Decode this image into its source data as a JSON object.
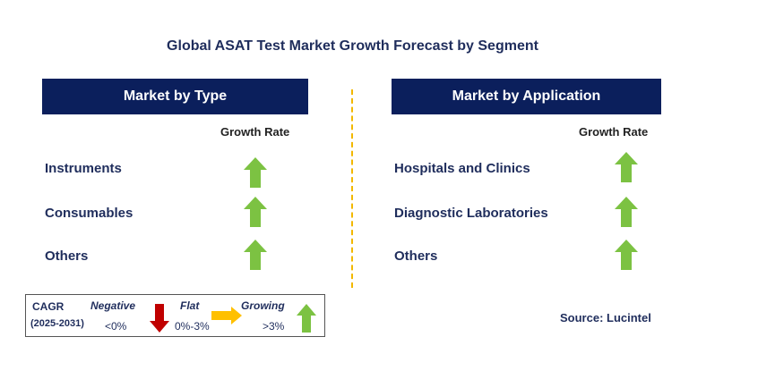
{
  "title": "Global ASAT Test Market Growth Forecast by Segment",
  "left_panel": {
    "header": "Market by Type",
    "growth_rate_label": "Growth Rate",
    "rows": [
      {
        "label": "Instruments",
        "trend": "growing"
      },
      {
        "label": "Consumables",
        "trend": "growing"
      },
      {
        "label": "Others",
        "trend": "growing"
      }
    ]
  },
  "right_panel": {
    "header": "Market by Application",
    "growth_rate_label": "Growth Rate",
    "rows": [
      {
        "label": "Hospitals and Clinics",
        "trend": "growing"
      },
      {
        "label": "Diagnostic Laboratories",
        "trend": "growing"
      },
      {
        "label": "Others",
        "trend": "growing"
      }
    ]
  },
  "legend": {
    "cagr_label": "CAGR",
    "period": "(2025-2031)",
    "negative": {
      "label": "Negative",
      "range": "<0%"
    },
    "flat": {
      "label": "Flat",
      "range": "0%-3%"
    },
    "growing": {
      "label": "Growing",
      "range": ">3%"
    }
  },
  "source": "Source: Lucintel",
  "colors": {
    "header_bg": "#0b1f5c",
    "growing_arrow": "#7cc242",
    "negative_arrow": "#c00000",
    "flat_arrow": "#ffc000",
    "divider": "#f2b800"
  }
}
